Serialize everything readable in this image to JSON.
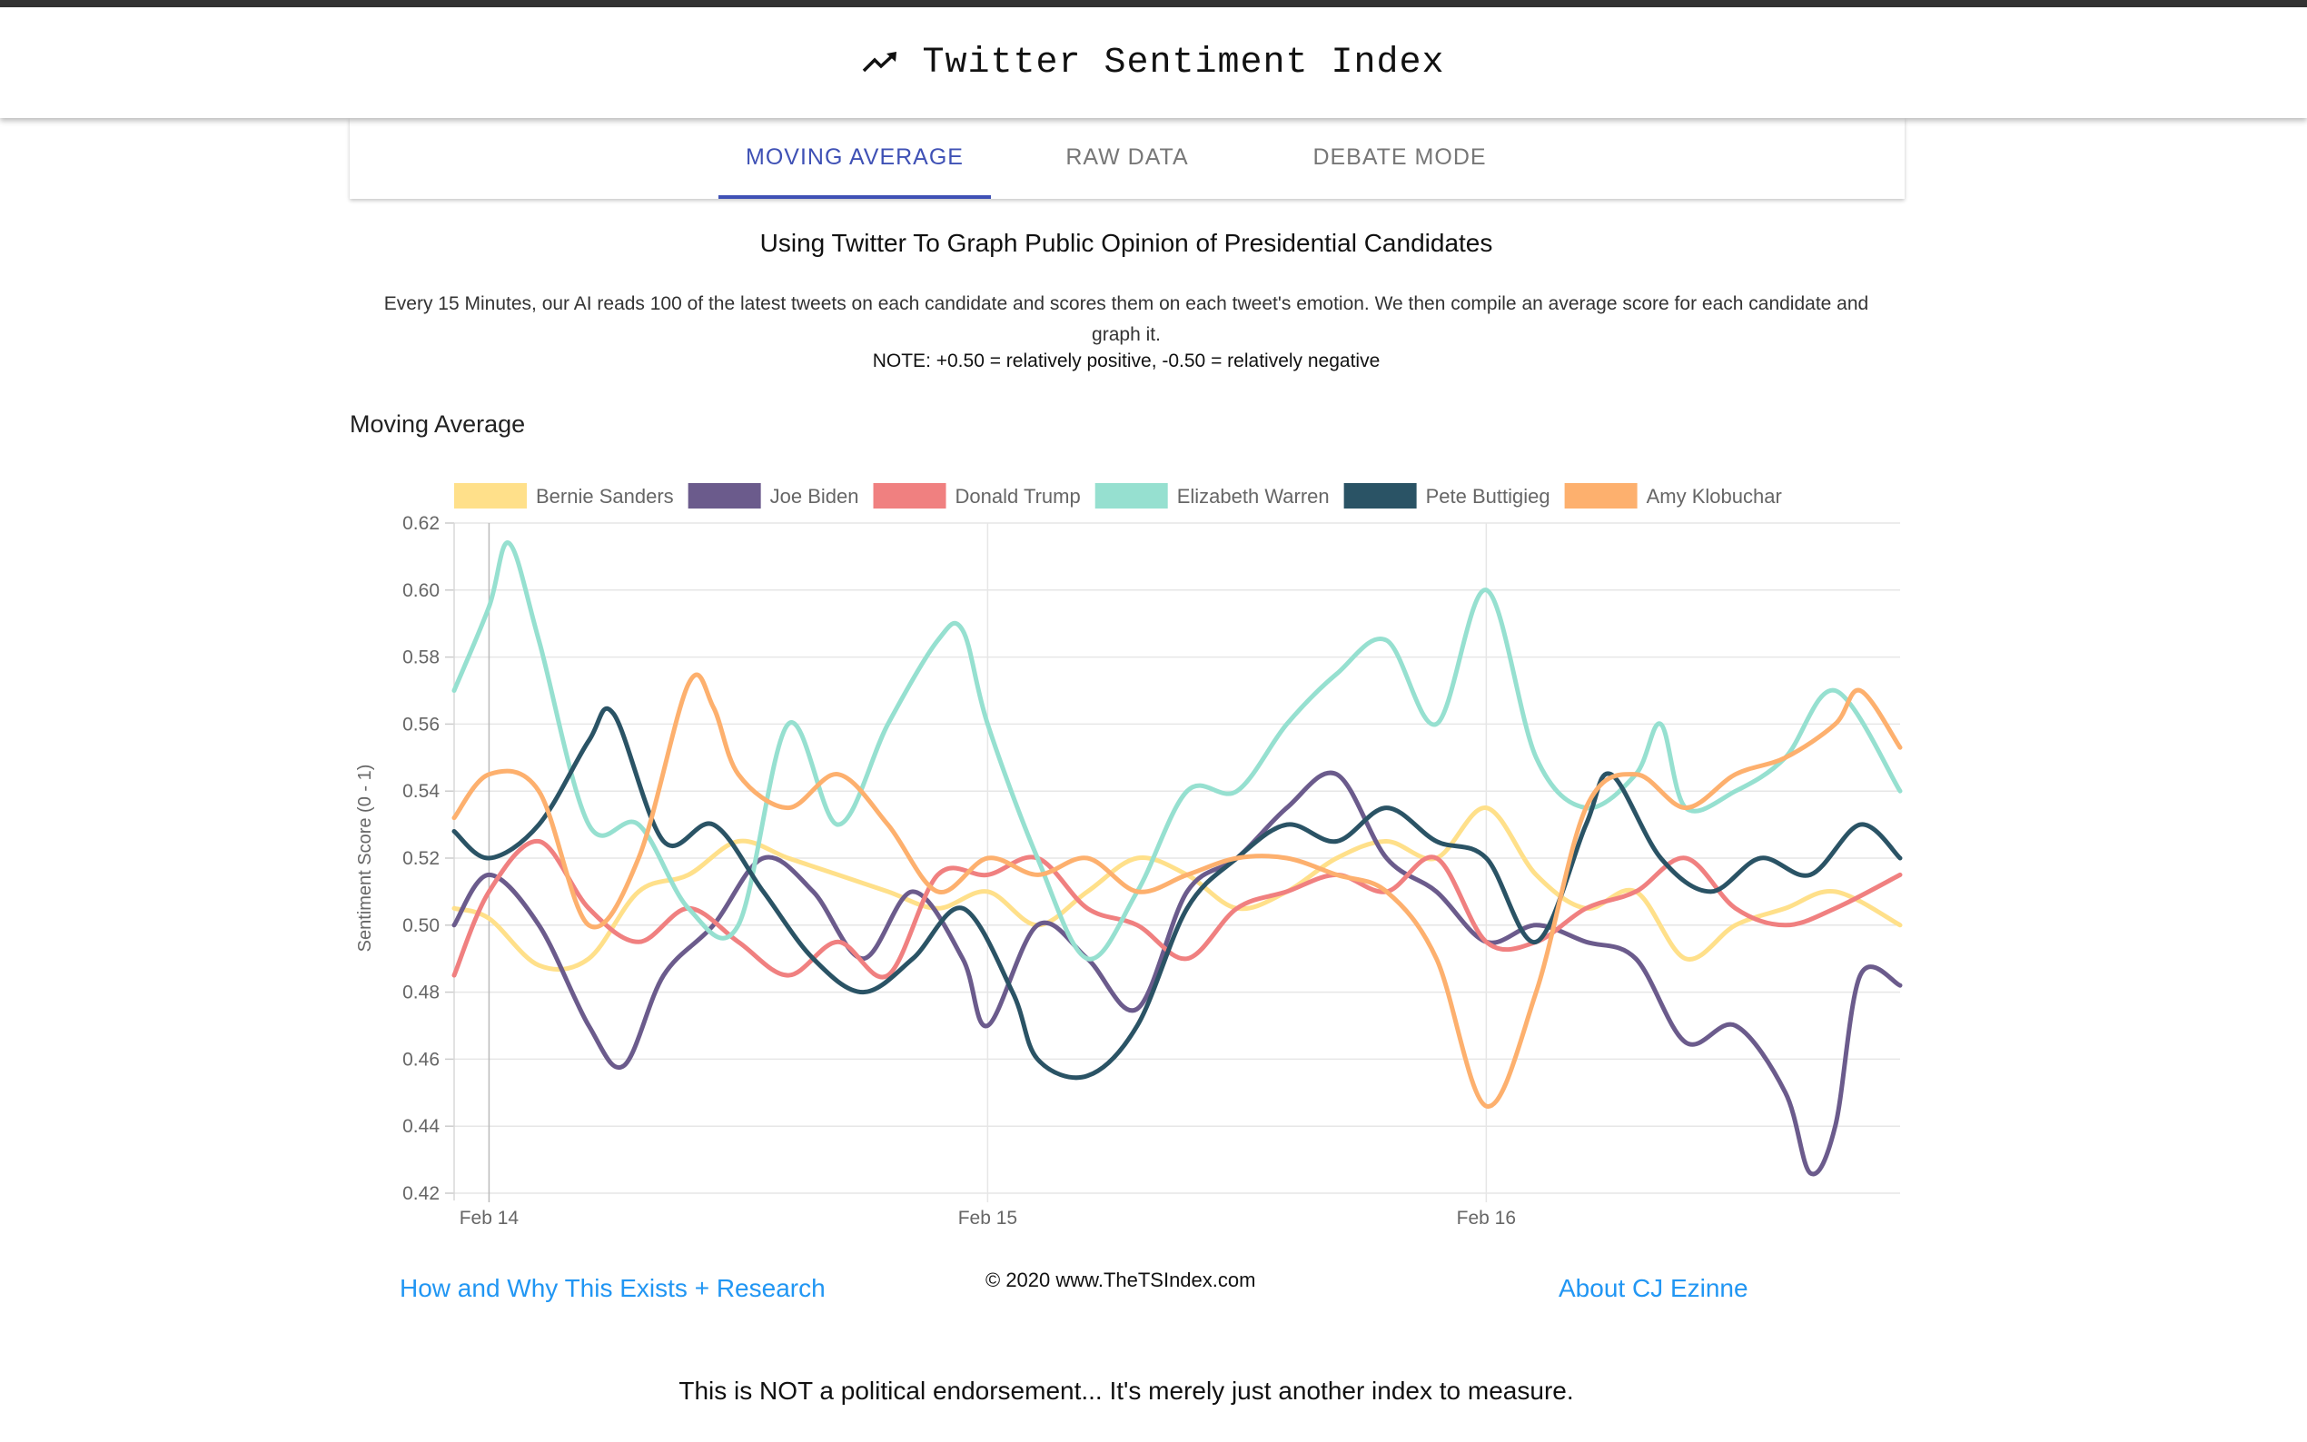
{
  "app": {
    "title": "Twitter Sentiment Index",
    "icon": "trending-up-icon"
  },
  "tabs": [
    {
      "label": "MOVING AVERAGE",
      "active": true
    },
    {
      "label": "RAW DATA",
      "active": false
    },
    {
      "label": "DEBATE MODE",
      "active": false
    }
  ],
  "intro": {
    "headline": "Using Twitter To Graph Public Opinion of Presidential Candidates",
    "description": "Every 15 Minutes, our AI reads 100 of the latest tweets on each candidate and scores them on each tweet's emotion. We then compile an average score for each candidate and graph it.",
    "note": "NOTE: +0.50 = relatively positive, -0.50 = relatively negative"
  },
  "section_title": "Moving Average",
  "chart_data": {
    "type": "line",
    "ylabel": "Sentiment Score (0 - 1)",
    "ylim": [
      0.42,
      0.62
    ],
    "yticks": [
      0.62,
      0.6,
      0.58,
      0.56,
      0.54,
      0.52,
      0.5,
      0.48,
      0.46,
      0.44,
      0.42
    ],
    "xlim": [
      -0.07,
      2.83
    ],
    "xticks": [
      {
        "x": 0,
        "label": "Feb 14"
      },
      {
        "x": 1,
        "label": "Feb 15"
      },
      {
        "x": 2,
        "label": "Feb 16"
      }
    ],
    "grid": true,
    "legend_position": "top",
    "series": [
      {
        "name": "Bernie Sanders",
        "color": "#ffe08a",
        "points": [
          [
            -0.07,
            0.505
          ],
          [
            0.0,
            0.502
          ],
          [
            0.1,
            0.488
          ],
          [
            0.2,
            0.49
          ],
          [
            0.3,
            0.51
          ],
          [
            0.4,
            0.515
          ],
          [
            0.5,
            0.525
          ],
          [
            0.6,
            0.52
          ],
          [
            0.7,
            0.515
          ],
          [
            0.8,
            0.51
          ],
          [
            0.9,
            0.505
          ],
          [
            1.0,
            0.51
          ],
          [
            1.1,
            0.5
          ],
          [
            1.2,
            0.51
          ],
          [
            1.3,
            0.52
          ],
          [
            1.4,
            0.515
          ],
          [
            1.5,
            0.505
          ],
          [
            1.6,
            0.51
          ],
          [
            1.7,
            0.52
          ],
          [
            1.8,
            0.525
          ],
          [
            1.9,
            0.52
          ],
          [
            2.0,
            0.535
          ],
          [
            2.1,
            0.515
          ],
          [
            2.2,
            0.505
          ],
          [
            2.3,
            0.51
          ],
          [
            2.4,
            0.49
          ],
          [
            2.5,
            0.5
          ],
          [
            2.6,
            0.505
          ],
          [
            2.7,
            0.51
          ],
          [
            2.83,
            0.5
          ]
        ]
      },
      {
        "name": "Joe Biden",
        "color": "#6b5b8c",
        "points": [
          [
            -0.07,
            0.5
          ],
          [
            0.0,
            0.515
          ],
          [
            0.1,
            0.5
          ],
          [
            0.2,
            0.47
          ],
          [
            0.27,
            0.458
          ],
          [
            0.35,
            0.485
          ],
          [
            0.45,
            0.5
          ],
          [
            0.55,
            0.52
          ],
          [
            0.65,
            0.51
          ],
          [
            0.75,
            0.49
          ],
          [
            0.85,
            0.51
          ],
          [
            0.95,
            0.49
          ],
          [
            1.0,
            0.47
          ],
          [
            1.1,
            0.5
          ],
          [
            1.2,
            0.49
          ],
          [
            1.3,
            0.475
          ],
          [
            1.4,
            0.51
          ],
          [
            1.5,
            0.52
          ],
          [
            1.6,
            0.535
          ],
          [
            1.7,
            0.545
          ],
          [
            1.8,
            0.52
          ],
          [
            1.9,
            0.51
          ],
          [
            2.0,
            0.495
          ],
          [
            2.1,
            0.5
          ],
          [
            2.2,
            0.495
          ],
          [
            2.3,
            0.49
          ],
          [
            2.4,
            0.465
          ],
          [
            2.5,
            0.47
          ],
          [
            2.6,
            0.45
          ],
          [
            2.65,
            0.426
          ],
          [
            2.7,
            0.44
          ],
          [
            2.75,
            0.485
          ],
          [
            2.83,
            0.482
          ]
        ]
      },
      {
        "name": "Donald Trump",
        "color": "#f08080",
        "points": [
          [
            -0.07,
            0.485
          ],
          [
            0.0,
            0.51
          ],
          [
            0.1,
            0.525
          ],
          [
            0.2,
            0.505
          ],
          [
            0.3,
            0.495
          ],
          [
            0.4,
            0.505
          ],
          [
            0.5,
            0.495
          ],
          [
            0.6,
            0.485
          ],
          [
            0.7,
            0.495
          ],
          [
            0.8,
            0.485
          ],
          [
            0.9,
            0.515
          ],
          [
            1.0,
            0.515
          ],
          [
            1.1,
            0.52
          ],
          [
            1.2,
            0.505
          ],
          [
            1.3,
            0.5
          ],
          [
            1.4,
            0.49
          ],
          [
            1.5,
            0.505
          ],
          [
            1.6,
            0.51
          ],
          [
            1.7,
            0.515
          ],
          [
            1.8,
            0.51
          ],
          [
            1.9,
            0.52
          ],
          [
            2.0,
            0.495
          ],
          [
            2.1,
            0.495
          ],
          [
            2.2,
            0.505
          ],
          [
            2.3,
            0.51
          ],
          [
            2.4,
            0.52
          ],
          [
            2.5,
            0.505
          ],
          [
            2.6,
            0.5
          ],
          [
            2.7,
            0.505
          ],
          [
            2.83,
            0.515
          ]
        ]
      },
      {
        "name": "Elizabeth Warren",
        "color": "#96e0d0",
        "points": [
          [
            -0.07,
            0.57
          ],
          [
            0.0,
            0.595
          ],
          [
            0.04,
            0.614
          ],
          [
            0.1,
            0.585
          ],
          [
            0.2,
            0.53
          ],
          [
            0.3,
            0.53
          ],
          [
            0.4,
            0.505
          ],
          [
            0.5,
            0.5
          ],
          [
            0.6,
            0.56
          ],
          [
            0.7,
            0.53
          ],
          [
            0.8,
            0.56
          ],
          [
            0.9,
            0.585
          ],
          [
            0.95,
            0.588
          ],
          [
            1.0,
            0.56
          ],
          [
            1.1,
            0.52
          ],
          [
            1.2,
            0.49
          ],
          [
            1.3,
            0.51
          ],
          [
            1.4,
            0.54
          ],
          [
            1.5,
            0.54
          ],
          [
            1.6,
            0.56
          ],
          [
            1.7,
            0.575
          ],
          [
            1.8,
            0.585
          ],
          [
            1.9,
            0.56
          ],
          [
            2.0,
            0.6
          ],
          [
            2.1,
            0.55
          ],
          [
            2.2,
            0.535
          ],
          [
            2.3,
            0.545
          ],
          [
            2.35,
            0.56
          ],
          [
            2.4,
            0.535
          ],
          [
            2.5,
            0.54
          ],
          [
            2.6,
            0.55
          ],
          [
            2.7,
            0.57
          ],
          [
            2.83,
            0.54
          ]
        ]
      },
      {
        "name": "Pete Buttigieg",
        "color": "#2a5365",
        "points": [
          [
            -0.07,
            0.528
          ],
          [
            0.0,
            0.52
          ],
          [
            0.1,
            0.53
          ],
          [
            0.2,
            0.555
          ],
          [
            0.25,
            0.563
          ],
          [
            0.35,
            0.525
          ],
          [
            0.45,
            0.53
          ],
          [
            0.55,
            0.51
          ],
          [
            0.65,
            0.49
          ],
          [
            0.75,
            0.48
          ],
          [
            0.85,
            0.49
          ],
          [
            0.95,
            0.505
          ],
          [
            1.05,
            0.48
          ],
          [
            1.1,
            0.46
          ],
          [
            1.2,
            0.455
          ],
          [
            1.3,
            0.47
          ],
          [
            1.4,
            0.505
          ],
          [
            1.5,
            0.52
          ],
          [
            1.6,
            0.53
          ],
          [
            1.7,
            0.525
          ],
          [
            1.8,
            0.535
          ],
          [
            1.9,
            0.525
          ],
          [
            2.0,
            0.52
          ],
          [
            2.1,
            0.495
          ],
          [
            2.2,
            0.53
          ],
          [
            2.25,
            0.545
          ],
          [
            2.35,
            0.52
          ],
          [
            2.45,
            0.51
          ],
          [
            2.55,
            0.52
          ],
          [
            2.65,
            0.515
          ],
          [
            2.75,
            0.53
          ],
          [
            2.83,
            0.52
          ]
        ]
      },
      {
        "name": "Amy Klobuchar",
        "color": "#fdb06e",
        "points": [
          [
            -0.07,
            0.532
          ],
          [
            0.0,
            0.545
          ],
          [
            0.1,
            0.54
          ],
          [
            0.2,
            0.5
          ],
          [
            0.3,
            0.52
          ],
          [
            0.4,
            0.572
          ],
          [
            0.45,
            0.565
          ],
          [
            0.5,
            0.545
          ],
          [
            0.6,
            0.535
          ],
          [
            0.7,
            0.545
          ],
          [
            0.8,
            0.53
          ],
          [
            0.9,
            0.51
          ],
          [
            1.0,
            0.52
          ],
          [
            1.1,
            0.515
          ],
          [
            1.2,
            0.52
          ],
          [
            1.3,
            0.51
          ],
          [
            1.4,
            0.515
          ],
          [
            1.5,
            0.52
          ],
          [
            1.6,
            0.52
          ],
          [
            1.7,
            0.515
          ],
          [
            1.8,
            0.51
          ],
          [
            1.9,
            0.49
          ],
          [
            2.0,
            0.446
          ],
          [
            2.1,
            0.48
          ],
          [
            2.2,
            0.535
          ],
          [
            2.3,
            0.545
          ],
          [
            2.4,
            0.535
          ],
          [
            2.5,
            0.545
          ],
          [
            2.6,
            0.55
          ],
          [
            2.7,
            0.56
          ],
          [
            2.75,
            0.57
          ],
          [
            2.83,
            0.553
          ]
        ]
      }
    ]
  },
  "footer": {
    "left_link": "How and Why This Exists + Research",
    "copyright": "© 2020 www.TheTSIndex.com",
    "right_link": "About CJ Ezinne",
    "disclaimer": "This is NOT a political endorsement... It's merely just another index to measure."
  }
}
